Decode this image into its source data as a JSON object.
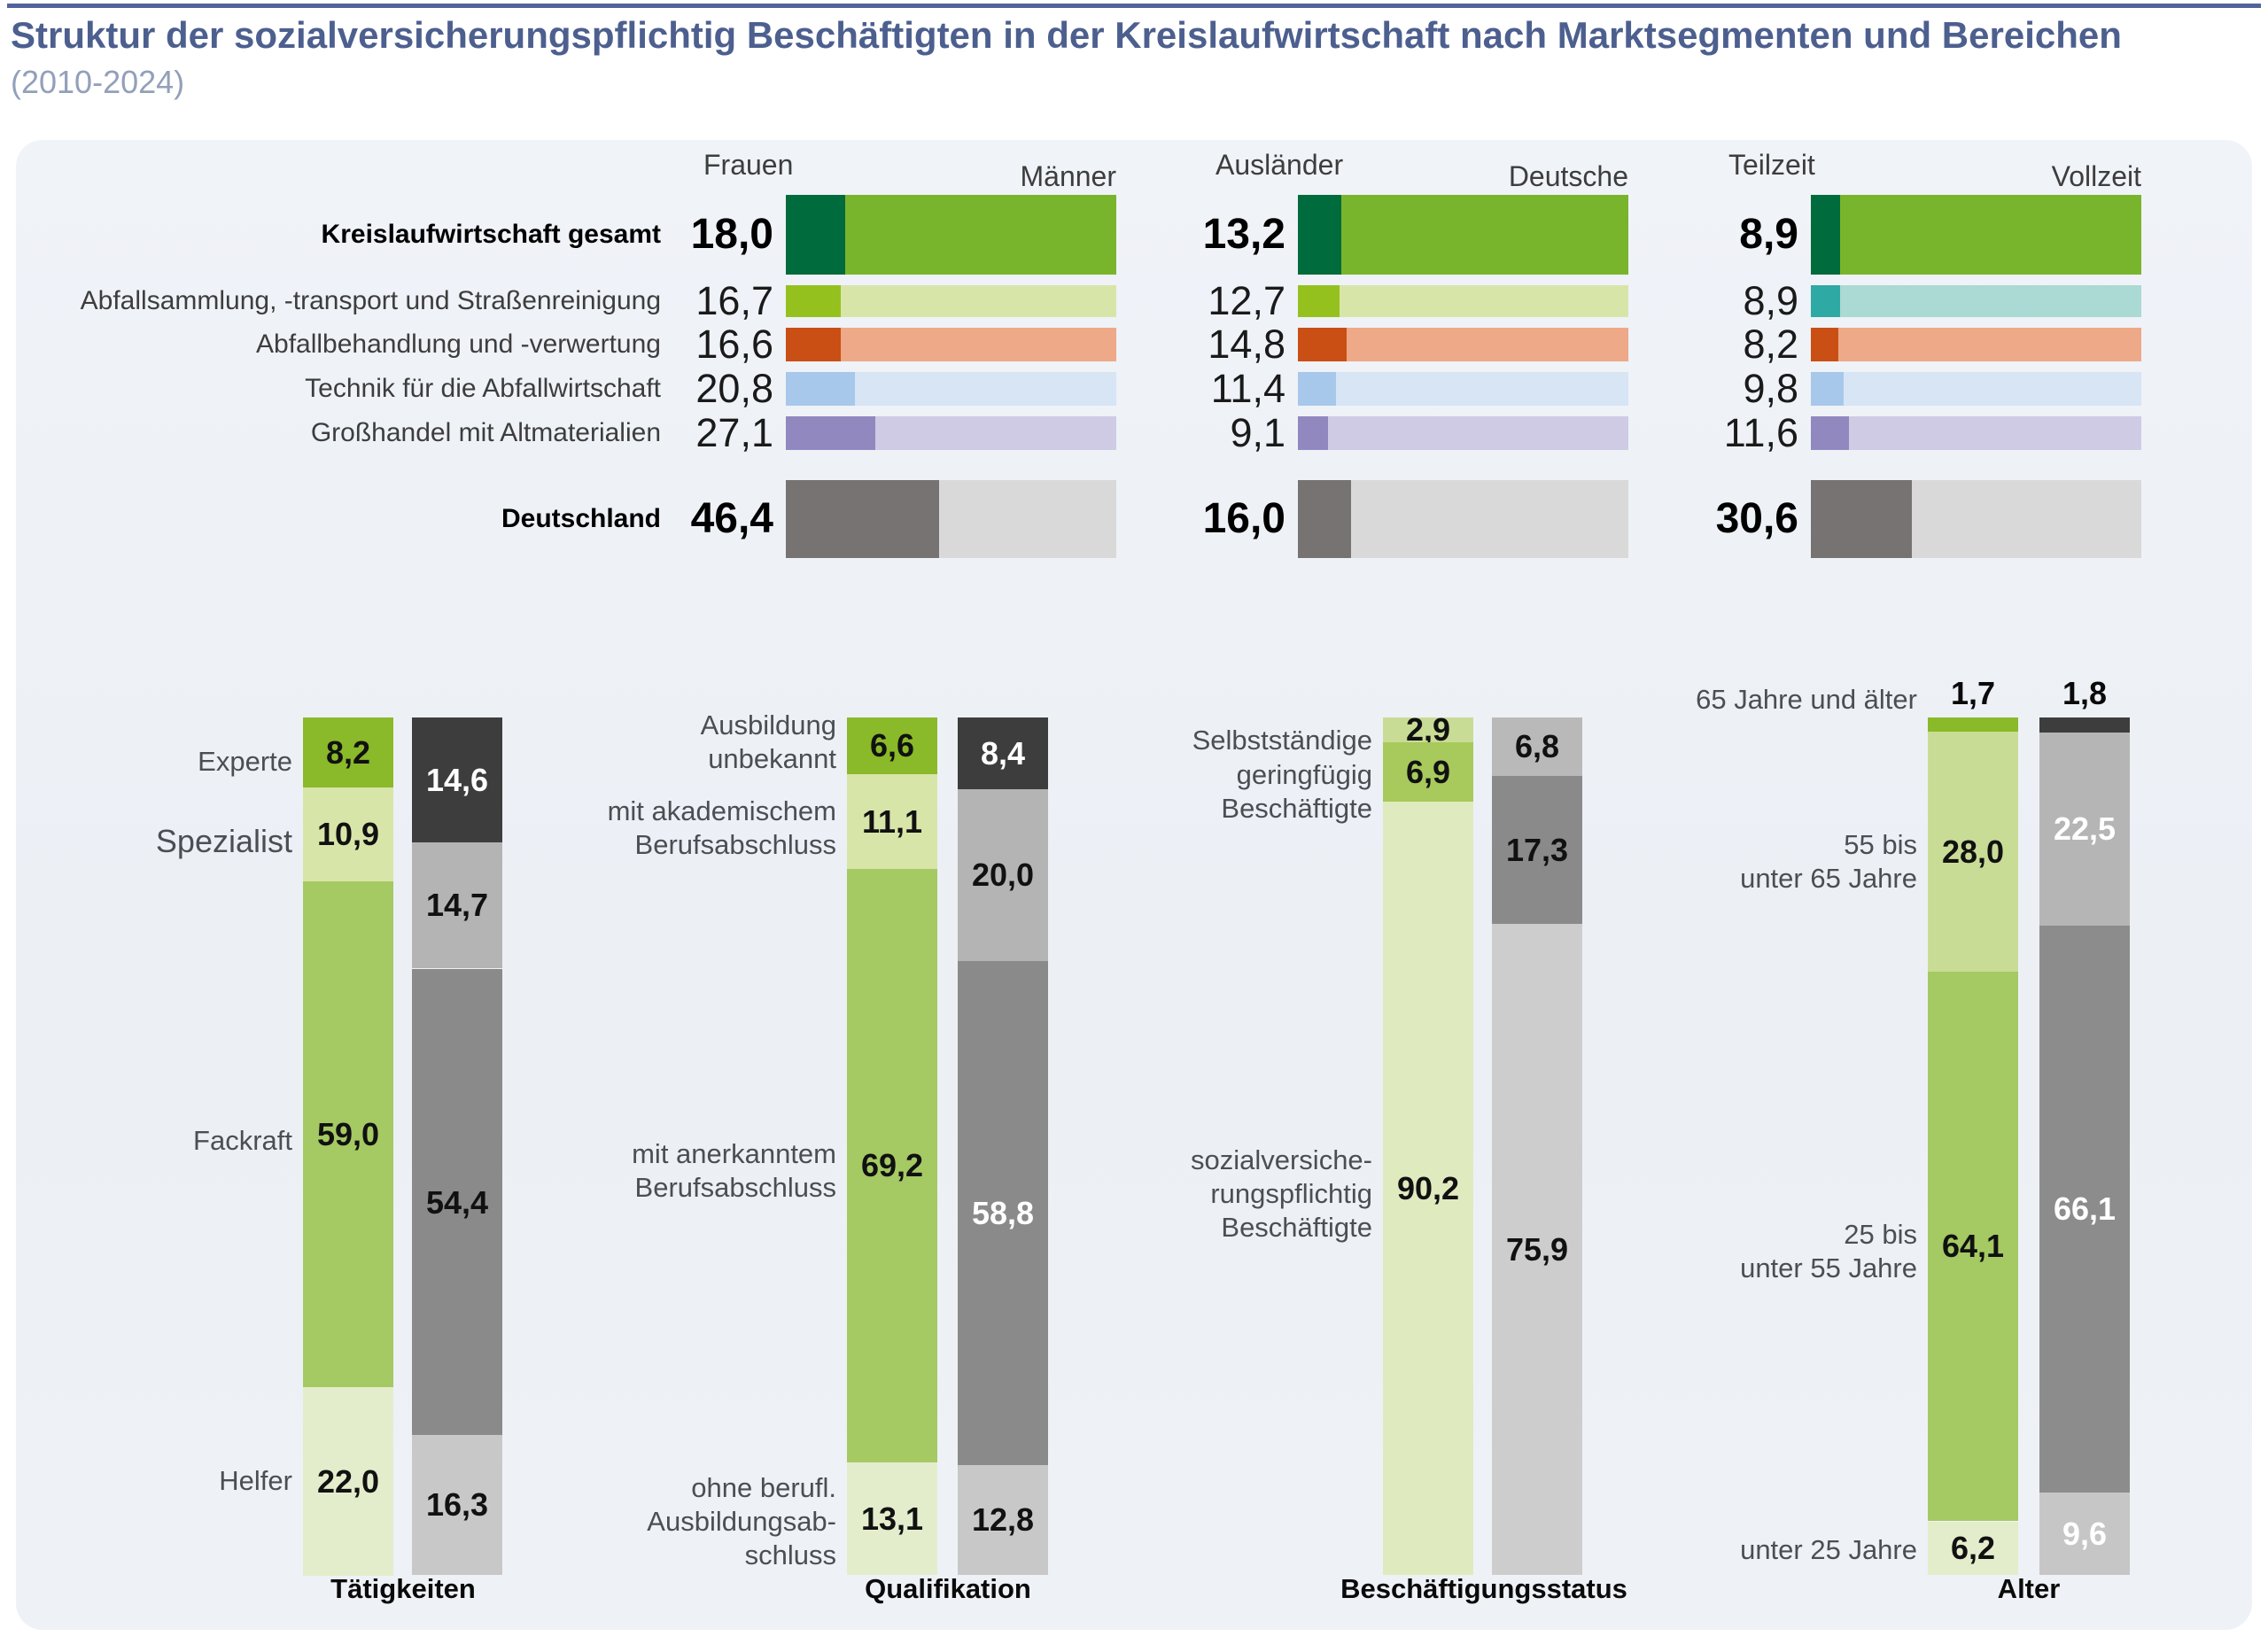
{
  "header": {
    "title": "Struktur der sozialversicherungspflichtig Beschäftigten in der Kreislaufwirtschaft nach Marktsegmenten und Bereichen",
    "subtitle": "(2010-2024)"
  },
  "colors": {
    "top_rule": "#51639a",
    "title_text": "#4c5f8f",
    "card_background": "#eef1f6",
    "dark_green": "#006b3c",
    "medium_green": "#79b52c",
    "bright_yellow_green": "#95c11f",
    "teal": "#2fa9a3",
    "rust_orange": "#c94f14",
    "light_blue": "#a7c8ea",
    "purple": "#9188c0",
    "dark_gray": "#767372",
    "charcoal": "#3e3d3d"
  },
  "chart_data": {
    "market_segments_chart": {
      "type": "bar",
      "orientation": "horizontal_stacked_100_percent",
      "unit": "%",
      "rows": [
        "Kreislaufwirtschaft gesamt",
        "Abfallsammlung, -transport und Straßenreinigung",
        "Abfallbehandlung und -verwertung",
        "Technik für die Abfallwirtschaft",
        "Großhandel mit Altmaterialien",
        "Deutschland"
      ],
      "bold_row_indices": [
        0,
        5
      ],
      "groups": [
        {
          "name": "gender",
          "left_label": "Frauen",
          "right_label": "Männer",
          "left_values": [
            18.0,
            16.7,
            16.6,
            20.8,
            27.1,
            46.4
          ],
          "row_colors": [
            [
              "#006b3c",
              "#79b52c"
            ],
            [
              "#95c11f",
              "#d8e5a8"
            ],
            [
              "#c94f14",
              "#eda988"
            ],
            [
              "#a7c8ea",
              "#d7e5f5"
            ],
            [
              "#9188c0",
              "#d0cbe4"
            ],
            [
              "#767372",
              "#d9d9d9"
            ]
          ]
        },
        {
          "name": "nationality",
          "left_label": "Ausländer",
          "right_label": "Deutsche",
          "left_values": [
            13.2,
            12.7,
            14.8,
            11.4,
            9.1,
            16.0
          ],
          "row_colors": [
            [
              "#006b3c",
              "#79b52c"
            ],
            [
              "#95c11f",
              "#d8e5a8"
            ],
            [
              "#c94f14",
              "#eda988"
            ],
            [
              "#a7c8ea",
              "#d7e5f5"
            ],
            [
              "#9188c0",
              "#d0cbe4"
            ],
            [
              "#767372",
              "#d9d9d9"
            ]
          ]
        },
        {
          "name": "worktime",
          "left_label": "Teilzeit",
          "right_label": "Vollzeit",
          "left_values": [
            8.9,
            8.9,
            8.2,
            9.8,
            11.6,
            30.6
          ],
          "row_colors": [
            [
              "#006b3c",
              "#79b52c"
            ],
            [
              "#2fa9a3",
              "#abd9d4"
            ],
            [
              "#c94f14",
              "#eda988"
            ],
            [
              "#a7c8ea",
              "#d7e5f5"
            ],
            [
              "#9188c0",
              "#d0cbe4"
            ],
            [
              "#767372",
              "#d9d9d9"
            ]
          ]
        }
      ]
    },
    "structure_charts": [
      {
        "title": "Tätigkeiten",
        "type": "bar",
        "orientation": "vertical_stacked_100_percent",
        "categories": [
          [
            "Experte"
          ],
          [
            "Spezialist"
          ],
          [
            "Fackraft"
          ],
          [
            "Helfer"
          ]
        ],
        "series": [
          {
            "name": "Kreislaufwirtschaft",
            "values": [
              8.2,
              10.9,
              59.0,
              22.0
            ],
            "colors": [
              "#8ab929",
              "#d8e5a8",
              "#a5c963",
              "#e3edcc"
            ],
            "text_colors": [
              "#111111",
              "#111111",
              "#111111",
              "#111111"
            ]
          },
          {
            "name": "Deutschland",
            "values": [
              14.6,
              14.7,
              54.4,
              16.3
            ],
            "colors": [
              "#3e3d3d",
              "#b4b4b4",
              "#8a8a8a",
              "#c8c8c8"
            ],
            "text_colors": [
              "#ffffff",
              "#111111",
              "#111111",
              "#111111"
            ]
          }
        ]
      },
      {
        "title": "Qualifikation",
        "type": "bar",
        "orientation": "vertical_stacked_100_percent",
        "categories": [
          [
            "Ausbildung",
            "unbekannt"
          ],
          [
            "mit akademischem",
            "Berufsabschluss"
          ],
          [
            "mit anerkanntem",
            "Berufsabschluss"
          ],
          [
            "ohne berufl.",
            "Ausbildungsab-",
            "schluss"
          ]
        ],
        "series": [
          {
            "name": "Kreislaufwirtschaft",
            "values": [
              6.6,
              11.1,
              69.2,
              13.1
            ],
            "colors": [
              "#8ab929",
              "#d8e5a8",
              "#a5c963",
              "#e3edcc"
            ],
            "text_colors": [
              "#111111",
              "#111111",
              "#111111",
              "#111111"
            ]
          },
          {
            "name": "Deutschland",
            "values": [
              8.4,
              20.0,
              58.8,
              12.8
            ],
            "colors": [
              "#3e3d3d",
              "#b4b4b4",
              "#8a8a8a",
              "#c8c8c8"
            ],
            "text_colors": [
              "#ffffff",
              "#111111",
              "#ffffff",
              "#111111"
            ]
          }
        ]
      },
      {
        "title": "Beschäftigungsstatus",
        "type": "bar",
        "orientation": "vertical_stacked_100_percent",
        "categories": [
          [
            "Selbstständige"
          ],
          [
            "geringfügig",
            "Beschäftigte"
          ],
          [
            "sozialversiche-",
            "rungspflichtig",
            "Beschäftigte"
          ]
        ],
        "series": [
          {
            "name": "Kreislaufwirtschaft",
            "values": [
              2.9,
              6.9,
              90.2
            ],
            "colors": [
              "#c9dc96",
              "#a8c95c",
              "#dfeabf"
            ],
            "text_colors": [
              "#111111",
              "#111111",
              "#111111"
            ]
          },
          {
            "name": "Deutschland",
            "values": [
              6.8,
              17.3,
              75.9
            ],
            "colors": [
              "#b9b9b9",
              "#8a8a8a",
              "#cdcdcd"
            ],
            "text_colors": [
              "#111111",
              "#111111",
              "#111111"
            ]
          }
        ]
      },
      {
        "title": "Alter",
        "type": "bar",
        "orientation": "vertical_stacked_100_percent",
        "categories": [
          [
            "65 Jahre und älter"
          ],
          [
            "55 bis",
            "unter 65 Jahre"
          ],
          [
            "25 bis",
            "unter 55 Jahre"
          ],
          [
            "unter 25 Jahre"
          ]
        ],
        "series": [
          {
            "name": "Kreislaufwirtschaft",
            "values": [
              1.7,
              28.0,
              64.1,
              6.2
            ],
            "colors": [
              "#8ab929",
              "#c9dc96",
              "#a5c963",
              "#e3edcc"
            ],
            "text_colors": [
              "#111111",
              "#111111",
              "#111111",
              "#111111"
            ]
          },
          {
            "name": "Deutschland",
            "values": [
              1.8,
              22.5,
              66.1,
              9.6
            ],
            "colors": [
              "#3e3d3d",
              "#b5b5b5",
              "#8c8c8c",
              "#c6c6c6"
            ],
            "text_colors": [
              "#111111",
              "#ffffff",
              "#ffffff",
              "#ffffff"
            ]
          }
        ]
      }
    ]
  }
}
